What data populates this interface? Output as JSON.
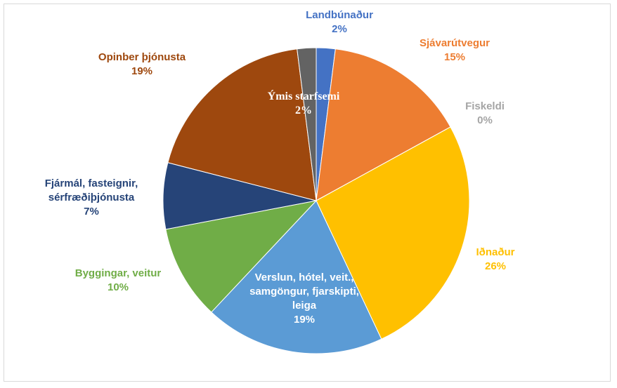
{
  "chart_data": {
    "type": "pie",
    "categories": [
      "Landbúnaður",
      "Sjávarútvegur",
      "Fiskeldi",
      "Iðnaður",
      "Verslun, hótel, veit., samgöngur, fjarskipti, leiga",
      "Byggingar, veitur",
      "Fjármál, fasteignir, sérfræðiþjónusta",
      "Opinber þjónusta",
      "Ýmis starfsemi"
    ],
    "values": [
      2,
      15,
      0,
      26,
      19,
      10,
      7,
      19,
      2
    ],
    "value_labels": [
      "2%",
      "15%",
      "0%",
      "26%",
      "19%",
      "10%",
      "7%",
      "19%",
      "2%"
    ],
    "colors": [
      "#4472c4",
      "#ed7d31",
      "#a5a5a5",
      "#ffc000",
      "#5b9bd5",
      "#70ad47",
      "#264478",
      "#9e480e",
      "#636363"
    ]
  }
}
